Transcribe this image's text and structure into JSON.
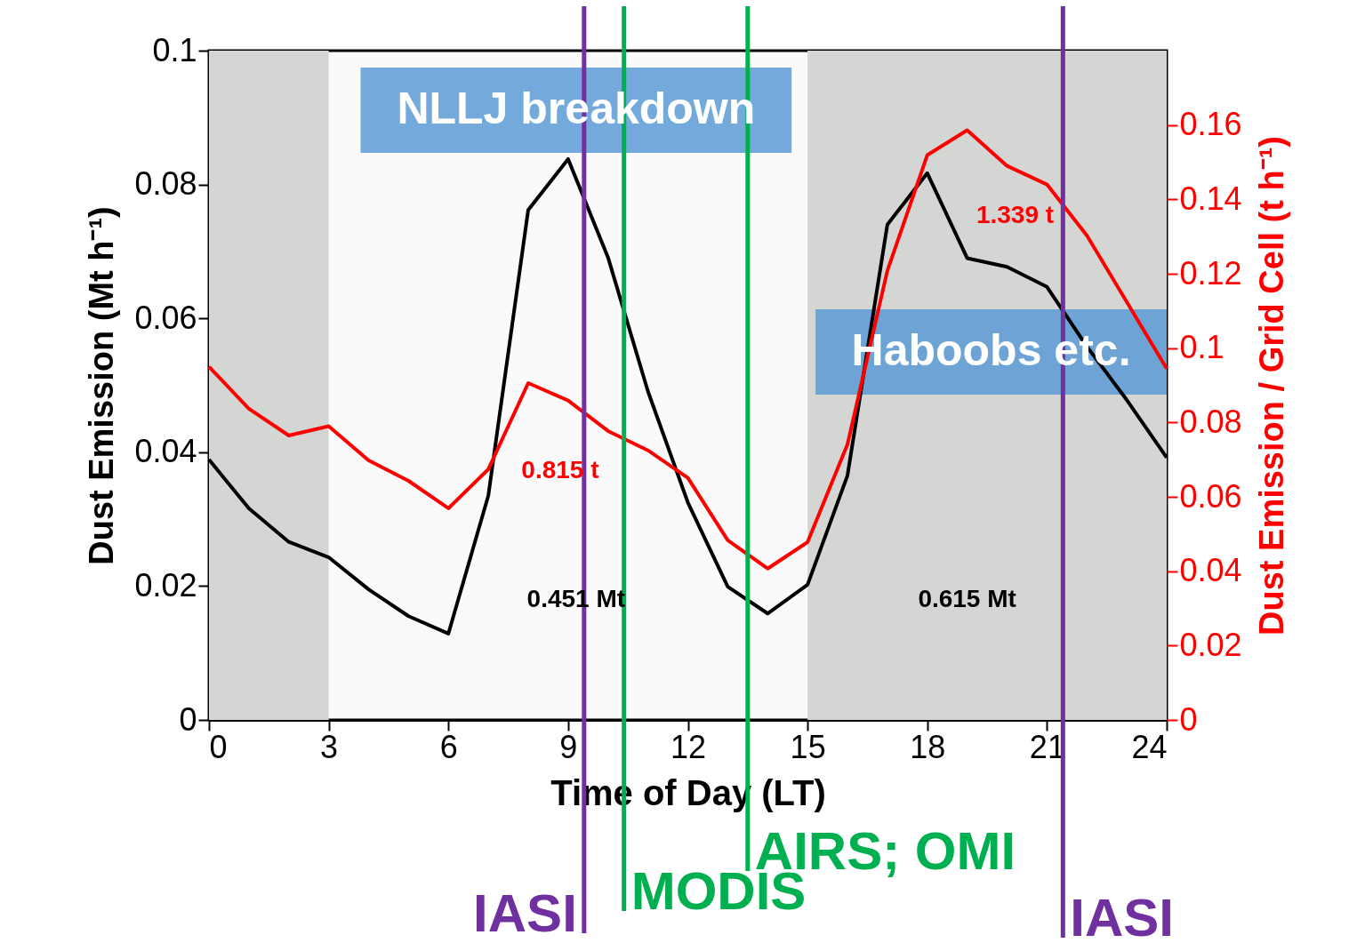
{
  "chart_data": {
    "type": "line",
    "xlabel": "Time of Day (LT)",
    "ylabel": "Dust Emission (Mt h⁻¹)",
    "y2label": "Dust Emission / Grid Cell (t h⁻¹)",
    "x": [
      0,
      1,
      2,
      3,
      4,
      5,
      6,
      7,
      8,
      9,
      10,
      11,
      12,
      13,
      14,
      15,
      16,
      17,
      18,
      19,
      20,
      21,
      22,
      23,
      24
    ],
    "series": [
      {
        "color": "#000000",
        "values": [
          0.0389,
          0.0316,
          0.0266,
          0.0243,
          0.0195,
          0.0155,
          0.0129,
          0.0335,
          0.0762,
          0.0838,
          0.0691,
          0.0491,
          0.0325,
          0.0199,
          0.0159,
          0.0202,
          0.0365,
          0.074,
          0.0817,
          0.069,
          0.0677,
          0.0647,
          0.0558,
          0.0478,
          0.0392
        ]
      },
      {
        "color": "#ff0000",
        "axis": "y2",
        "values": [
          0.095,
          0.0837,
          0.0765,
          0.079,
          0.0698,
          0.0643,
          0.0569,
          0.0674,
          0.0906,
          0.0859,
          0.0777,
          0.0725,
          0.0651,
          0.0483,
          0.0407,
          0.0478,
          0.0741,
          0.1208,
          0.1519,
          0.1586,
          0.149,
          0.144,
          0.1303,
          0.1124,
          0.0945
        ]
      }
    ],
    "xlim": [
      0,
      24
    ],
    "xticks": [
      0,
      3,
      6,
      9,
      12,
      15,
      18,
      21,
      24
    ],
    "ylim": [
      0,
      0.1
    ],
    "yticks": [
      0,
      0.02,
      0.04,
      0.06,
      0.08,
      0.1
    ],
    "y2lim": [
      0,
      0.18
    ],
    "y2ticks": [
      0,
      0.02,
      0.04,
      0.06,
      0.08,
      0.1,
      0.12,
      0.14,
      0.16
    ],
    "bands": [
      {
        "axis": "x",
        "from": 0,
        "to": 3,
        "color": "#d4d6d4"
      },
      {
        "axis": "x",
        "from": 15,
        "to": 24,
        "color": "#d4d6d4"
      }
    ],
    "ref_lines": [
      {
        "axis": "x",
        "value": 9.4,
        "label": "IASI",
        "color": "#7030a0"
      },
      {
        "axis": "x",
        "value": 10.4,
        "label": "MODIS",
        "color": "#00b050"
      },
      {
        "axis": "x",
        "value": 13.5,
        "label": "AIRS; OMI",
        "color": "#00b050"
      },
      {
        "axis": "x",
        "value": 21.4,
        "label": "IASI",
        "color": "#7030a0"
      }
    ],
    "annotations": [
      "NLLJ breakdown",
      "Haboobs etc.",
      "0.815 t",
      "1.339 t",
      "0.451 Mt",
      "0.615 Mt"
    ],
    "grid": false,
    "marker": "none",
    "line_style": "solid"
  }
}
